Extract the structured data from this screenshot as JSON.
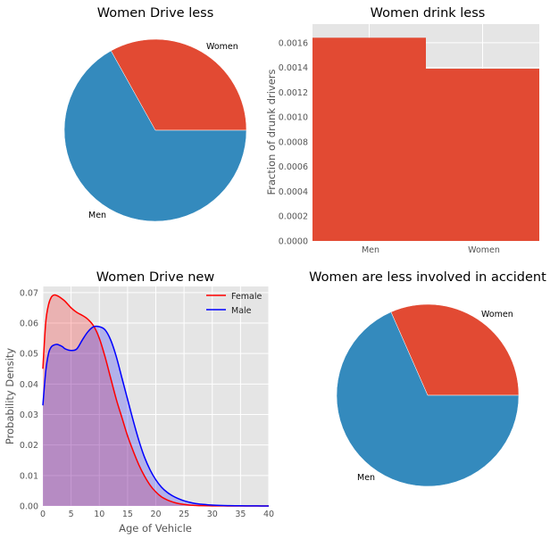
{
  "colors": {
    "red": "#E24A33",
    "blue": "#348ABD",
    "female": "#FF0000",
    "male": "#0000FF",
    "panel": "#E5E5E5",
    "grid": "#FFFFFF"
  },
  "chart_data": [
    {
      "type": "pie",
      "title": "Women Drive less",
      "labels": [
        "Women",
        "Men"
      ],
      "values": [
        33.1,
        66.9
      ],
      "colors": [
        "#E24A33",
        "#348ABD"
      ]
    },
    {
      "type": "bar",
      "title": "Women drink less",
      "categories": [
        "Men",
        "Women"
      ],
      "values": [
        0.00164,
        0.00139
      ],
      "xlabel": "",
      "ylabel": "Fraction of drunk drivers",
      "ylim": [
        0,
        0.00175
      ],
      "yticks": [
        "0.0000",
        "0.0002",
        "0.0004",
        "0.0006",
        "0.0008",
        "0.0010",
        "0.0012",
        "0.0014",
        "0.0016"
      ],
      "grid": true
    },
    {
      "type": "area",
      "title": "Women Drive new",
      "xlabel": "Age of Vehicle",
      "ylabel": "Probability Density",
      "xlim": [
        0,
        40
      ],
      "ylim": [
        0,
        0.072
      ],
      "xticks": [
        "0",
        "5",
        "10",
        "15",
        "20",
        "25",
        "30",
        "35",
        "40"
      ],
      "yticks": [
        "0.00",
        "0.01",
        "0.02",
        "0.03",
        "0.04",
        "0.05",
        "0.06",
        "0.07"
      ],
      "legend": "top-right",
      "grid": true,
      "x": [
        0,
        0.5,
        1,
        1.5,
        2,
        2.5,
        3,
        3.5,
        4,
        5,
        6,
        7,
        8,
        9,
        10,
        11,
        12,
        13,
        14,
        15,
        16,
        17,
        18,
        19,
        20,
        21,
        22,
        23,
        24,
        25,
        26,
        27,
        28,
        30,
        32,
        34,
        36,
        38,
        40
      ],
      "series": [
        {
          "name": "Female",
          "color": "#FF0000",
          "values": [
            0.045,
            0.06,
            0.066,
            0.0685,
            0.0692,
            0.069,
            0.0685,
            0.0678,
            0.067,
            0.065,
            0.0635,
            0.0625,
            0.0612,
            0.059,
            0.055,
            0.049,
            0.042,
            0.035,
            0.029,
            0.023,
            0.018,
            0.0135,
            0.0098,
            0.0068,
            0.0046,
            0.003,
            0.002,
            0.0013,
            0.0008,
            0.0005,
            0.0003,
            0.0002,
            0.0001,
            5e-05,
            2e-05,
            0.0,
            0.0,
            0.0,
            0.0
          ]
        },
        {
          "name": "Male",
          "color": "#0000FF",
          "values": [
            0.033,
            0.044,
            0.05,
            0.0522,
            0.0528,
            0.053,
            0.0527,
            0.0522,
            0.0515,
            0.051,
            0.0515,
            0.0545,
            0.0572,
            0.0588,
            0.0588,
            0.0578,
            0.0545,
            0.049,
            0.042,
            0.035,
            0.028,
            0.0215,
            0.016,
            0.0118,
            0.0086,
            0.0062,
            0.0045,
            0.0033,
            0.0024,
            0.0017,
            0.0012,
            0.0008,
            0.0006,
            0.0003,
            0.00015,
            8e-05,
            4e-05,
            2e-05,
            1e-05
          ]
        }
      ]
    },
    {
      "type": "pie",
      "title": "Women are less involved in accident",
      "labels": [
        "Women",
        "Men"
      ],
      "values": [
        31.6,
        68.4
      ],
      "colors": [
        "#E24A33",
        "#348ABD"
      ]
    }
  ]
}
